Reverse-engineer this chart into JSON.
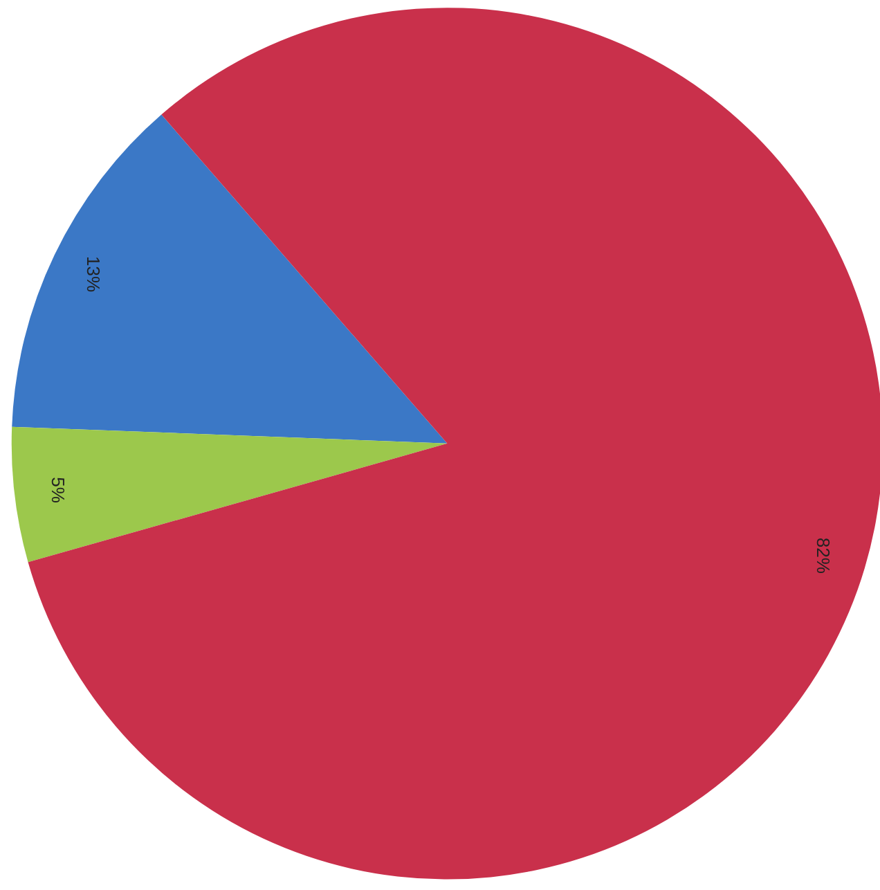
{
  "chart_data": {
    "type": "pie",
    "categories": [
      null,
      null,
      null
    ],
    "values": [
      13,
      5,
      82
    ],
    "colors": [
      "#3b78c6",
      "#9cc84c",
      "#c9304b"
    ],
    "value_labels": [
      "13%",
      "5%",
      "82%"
    ]
  }
}
